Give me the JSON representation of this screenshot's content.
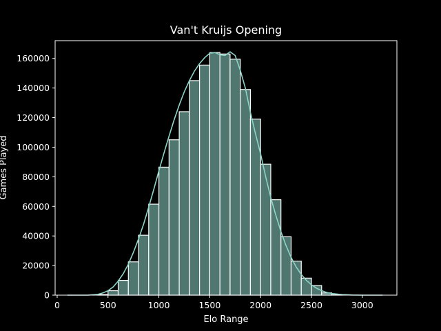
{
  "chart_data": {
    "type": "bar",
    "title": "Van't Kruijs Opening",
    "xlabel": "Elo Range",
    "ylabel": "Games Played",
    "xlim": [
      -20,
      3340
    ],
    "ylim": [
      0,
      172000
    ],
    "xticks": [
      0,
      500,
      1000,
      1500,
      2000,
      2500,
      3000
    ],
    "yticks": [
      0,
      20000,
      40000,
      60000,
      80000,
      100000,
      120000,
      140000,
      160000
    ],
    "bin_edges": [
      100,
      200,
      300,
      400,
      500,
      600,
      700,
      800,
      900,
      1000,
      1100,
      1200,
      1300,
      1400,
      1500,
      1600,
      1700,
      1800,
      1900,
      2000,
      2100,
      2200,
      2300,
      2400,
      2500,
      2600,
      2700,
      2800,
      2900,
      3000,
      3100,
      3200
    ],
    "values": [
      0,
      0,
      0,
      400,
      3000,
      10000,
      22500,
      40500,
      61500,
      86500,
      105000,
      124000,
      145000,
      155500,
      164000,
      163000,
      159500,
      139000,
      119000,
      88500,
      64500,
      39500,
      23000,
      11500,
      6500,
      1500,
      300,
      0,
      0,
      0,
      0
    ],
    "kde_line": {
      "x": [
        100,
        300,
        400,
        450,
        500,
        550,
        600,
        650,
        700,
        750,
        800,
        850,
        900,
        950,
        1000,
        1050,
        1100,
        1150,
        1200,
        1250,
        1300,
        1350,
        1400,
        1450,
        1500,
        1550,
        1600,
        1650,
        1700,
        1750,
        1800,
        1850,
        1900,
        1950,
        2000,
        2050,
        2100,
        2150,
        2200,
        2250,
        2300,
        2350,
        2400,
        2450,
        2500,
        2550,
        2600,
        2650,
        2700,
        2800,
        2900,
        3000,
        3200
      ],
      "y": [
        0,
        0,
        500,
        1500,
        3000,
        5500,
        9500,
        14500,
        21000,
        29000,
        38000,
        48000,
        59500,
        71500,
        84000,
        96000,
        107500,
        118500,
        128500,
        137500,
        145000,
        151500,
        156500,
        160500,
        163500,
        164000,
        162500,
        162000,
        164500,
        162000,
        152000,
        140000,
        123500,
        109000,
        95500,
        80000,
        66000,
        54000,
        43000,
        33500,
        25500,
        19000,
        14000,
        10000,
        7000,
        4700,
        3000,
        1800,
        1100,
        400,
        100,
        0,
        0
      ]
    },
    "colors": {
      "bar_fill": "#4f7770",
      "bar_edge": "#ffffff",
      "line": "#8dd3c7",
      "background": "#000000"
    },
    "grid": false,
    "legend": "none"
  }
}
